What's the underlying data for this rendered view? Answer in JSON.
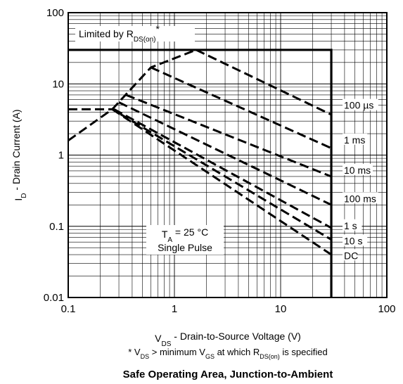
{
  "chart_data": {
    "type": "line",
    "title": "Safe Operating Area, Junction-to-Ambient",
    "xlabel": {
      "main": "V",
      "sub": "DS",
      "rest": " - Drain-to-Source Voltage (V)"
    },
    "ylabel": {
      "main": "I",
      "sub": "D",
      "rest": " - Drain Current (A)"
    },
    "xscale": "log",
    "yscale": "log",
    "xlim": [
      0.1,
      100
    ],
    "ylim": [
      0.01,
      100
    ],
    "grid": true,
    "x_tick_labels": [
      {
        "value": 0.1,
        "label": "0.1"
      },
      {
        "value": 1,
        "label": "1"
      },
      {
        "value": 10,
        "label": "10"
      },
      {
        "value": 100,
        "label": "100"
      }
    ],
    "y_tick_labels": [
      {
        "value": 0.01,
        "label": "0.01"
      },
      {
        "value": 0.1,
        "label": "0.1"
      },
      {
        "value": 1,
        "label": "1"
      },
      {
        "value": 10,
        "label": "10"
      },
      {
        "value": 100,
        "label": "100"
      }
    ],
    "limit_annotation": {
      "main": "Limited by R",
      "sub": "DS(on)",
      "suffix": "*"
    },
    "conditions_annotation": {
      "line1_main": "T",
      "line1_sub": "A",
      "line1_rest": " = 25 °C",
      "line2": "Single Pulse"
    },
    "footnote": {
      "a": "* V",
      "b": "DS",
      "c": " > minimum V",
      "d": "GS",
      "e": " at which R",
      "f": "DS(on)",
      "g": " is specified"
    },
    "boundary": {
      "style": "solid",
      "points": [
        [
          0.1,
          30
        ],
        [
          30,
          30
        ],
        [
          30,
          0.01
        ]
      ]
    },
    "rdson_limit": {
      "style": "dashed",
      "points": [
        [
          0.1,
          1.6
        ],
        [
          0.26,
          4.4
        ],
        [
          0.6,
          17
        ],
        [
          1.6,
          30
        ]
      ]
    },
    "series": [
      {
        "name": "100 µs",
        "style": "dashed",
        "points": [
          [
            1.6,
            30
          ],
          [
            30,
            3.7
          ]
        ]
      },
      {
        "name": "1 ms",
        "style": "dashed",
        "points": [
          [
            0.6,
            17
          ],
          [
            30,
            1.25
          ]
        ]
      },
      {
        "name": "10 ms",
        "style": "dashed",
        "points": [
          [
            0.35,
            7
          ],
          [
            30,
            0.5
          ]
        ]
      },
      {
        "name": "100 ms",
        "style": "dashed",
        "points": [
          [
            0.3,
            5.5
          ],
          [
            30,
            0.2
          ]
        ]
      },
      {
        "name": "1 s",
        "style": "dashed",
        "points": [
          [
            0.27,
            4.4
          ],
          [
            30,
            0.095
          ]
        ]
      },
      {
        "name": "10 s",
        "style": "dashed",
        "points": [
          [
            0.1,
            4.4
          ],
          [
            0.26,
            4.4
          ],
          [
            30,
            0.065
          ]
        ]
      },
      {
        "name": "DC",
        "style": "dashed",
        "points": [
          [
            0.26,
            4.4
          ],
          [
            30,
            0.04
          ]
        ]
      }
    ],
    "curve_labels": [
      {
        "series": "100 µs",
        "y": 4.9
      },
      {
        "series": "1 ms",
        "y": 1.6
      },
      {
        "series": "10 ms",
        "y": 0.6
      },
      {
        "series": "100 ms",
        "y": 0.24
      },
      {
        "series": "1 s",
        "y": 0.1
      },
      {
        "series": "10 s",
        "y": 0.061
      },
      {
        "series": "DC",
        "y": 0.038
      }
    ]
  }
}
